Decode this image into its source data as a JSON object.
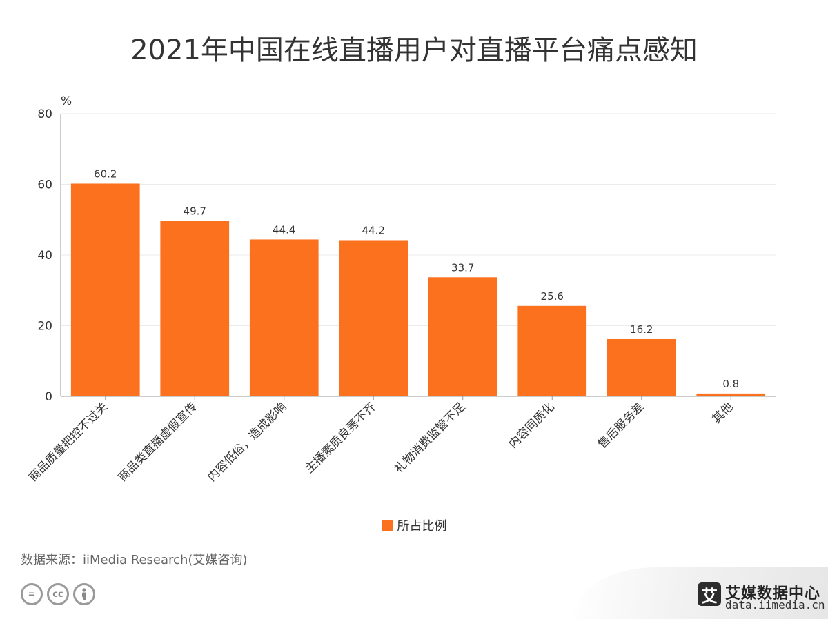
{
  "title": "2021年中国在线直播用户对直播平台痛点感知",
  "unit": "%",
  "legend_label": "所占比例",
  "source": "数据来源：iiMedia Research(艾媒咨询)",
  "brand": {
    "logo_char": "艾",
    "name": "艾媒数据中心",
    "url": "data.iimedia.cn"
  },
  "colors": {
    "bar": "#fb711d",
    "grid": "#ebebeb",
    "axis": "#999999",
    "text": "#333333"
  },
  "license_icons": [
    "equals-icon",
    "cc-icon",
    "person-icon"
  ],
  "chart_data": {
    "type": "bar",
    "title": "2021年中国在线直播用户对直播平台痛点感知",
    "xlabel": "",
    "ylabel": "%",
    "ylim": [
      0,
      80
    ],
    "yticks": [
      0,
      20,
      40,
      60,
      80
    ],
    "grid": true,
    "legend_position": "bottom",
    "categories": [
      "商品质量把控不过关",
      "商品类直播虚假宣传",
      "内容低俗，造成影响",
      "主播素质良莠不齐",
      "礼物消费监管不足",
      "内容同质化",
      "售后服务差",
      "其他"
    ],
    "series": [
      {
        "name": "所占比例",
        "values": [
          60.2,
          49.7,
          44.4,
          44.2,
          33.7,
          25.6,
          16.2,
          0.8
        ]
      }
    ]
  }
}
